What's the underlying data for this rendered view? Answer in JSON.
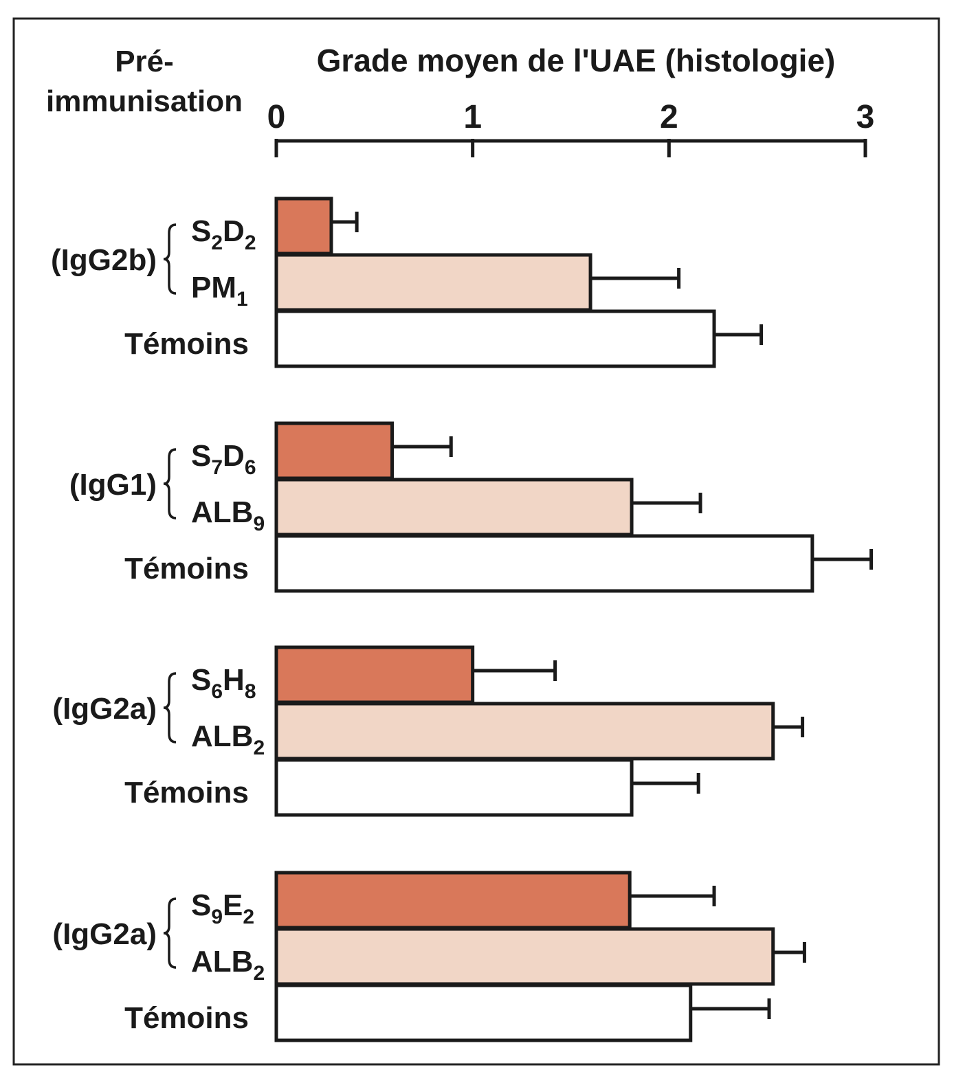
{
  "chart_data": {
    "type": "bar",
    "orientation": "horizontal",
    "title": "Grade moyen de l'UAE (histologie)",
    "row_header": "Pré-immunisation",
    "row_header_lines": [
      "Pré-",
      "immunisation"
    ],
    "xlim": [
      0,
      3
    ],
    "ticks": [
      "0",
      "1",
      "2",
      "3"
    ],
    "grid": false,
    "legend": "none",
    "colors": {
      "specific": "#d9785a",
      "control_ab": "#f1d6c6",
      "temoins": "#ffffff",
      "stroke": "#1a1a1a"
    },
    "groups": [
      {
        "isotype": "(IgG2b)",
        "bars": [
          {
            "base": "S",
            "sub1": "2",
            "mid": "D",
            "sub2": "2",
            "kind": "specific",
            "value": 0.28,
            "error": 0.13
          },
          {
            "base": "PM",
            "sub1": "1",
            "mid": "",
            "sub2": "",
            "kind": "control_ab",
            "value": 1.6,
            "error": 0.45
          },
          {
            "base": "Témoins",
            "sub1": "",
            "mid": "",
            "sub2": "",
            "kind": "temoins",
            "value": 2.23,
            "error": 0.24
          }
        ]
      },
      {
        "isotype": "(IgG1)",
        "bars": [
          {
            "base": "S",
            "sub1": "7",
            "mid": "D",
            "sub2": "6",
            "kind": "specific",
            "value": 0.59,
            "error": 0.3
          },
          {
            "base": "ALB",
            "sub1": "9",
            "mid": "",
            "sub2": "",
            "kind": "control_ab",
            "value": 1.81,
            "error": 0.35
          },
          {
            "base": "Témoins",
            "sub1": "",
            "mid": "",
            "sub2": "",
            "kind": "temoins",
            "value": 2.73,
            "error": 0.3
          }
        ]
      },
      {
        "isotype": "(IgG2a)",
        "bars": [
          {
            "base": "S",
            "sub1": "6",
            "mid": "H",
            "sub2": "8",
            "kind": "specific",
            "value": 1.0,
            "error": 0.42
          },
          {
            "base": "ALB",
            "sub1": "2",
            "mid": "",
            "sub2": "",
            "kind": "control_ab",
            "value": 2.53,
            "error": 0.15
          },
          {
            "base": "Témoins",
            "sub1": "",
            "mid": "",
            "sub2": "",
            "kind": "temoins",
            "value": 1.81,
            "error": 0.34
          }
        ]
      },
      {
        "isotype": "(IgG2a)",
        "bars": [
          {
            "base": "S",
            "sub1": "9",
            "mid": "E",
            "sub2": "2",
            "kind": "specific",
            "value": 1.8,
            "error": 0.43
          },
          {
            "base": "ALB",
            "sub1": "2",
            "mid": "",
            "sub2": "",
            "kind": "control_ab",
            "value": 2.53,
            "error": 0.16
          },
          {
            "base": "Témoins",
            "sub1": "",
            "mid": "",
            "sub2": "",
            "kind": "temoins",
            "value": 2.11,
            "error": 0.4
          }
        ]
      }
    ]
  }
}
